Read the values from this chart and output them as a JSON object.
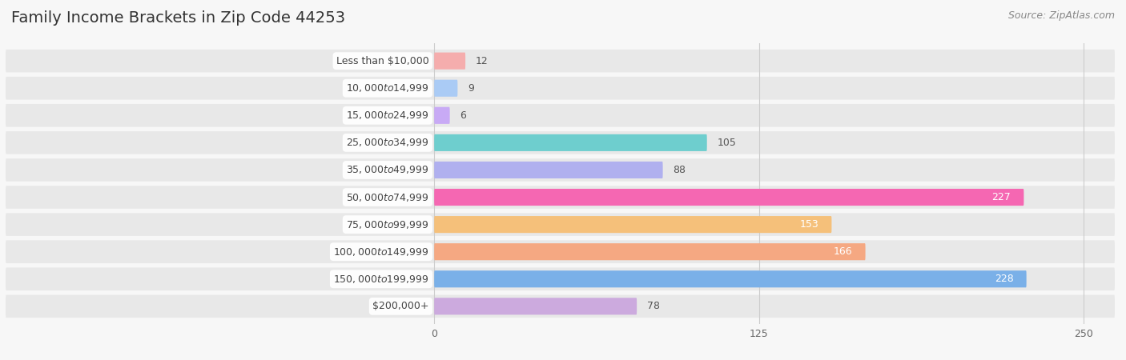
{
  "title": "Family Income Brackets in Zip Code 44253",
  "source": "Source: ZipAtlas.com",
  "categories": [
    "Less than $10,000",
    "$10,000 to $14,999",
    "$15,000 to $24,999",
    "$25,000 to $34,999",
    "$35,000 to $49,999",
    "$50,000 to $74,999",
    "$75,000 to $99,999",
    "$100,000 to $149,999",
    "$150,000 to $199,999",
    "$200,000+"
  ],
  "values": [
    12,
    9,
    6,
    105,
    88,
    227,
    153,
    166,
    228,
    78
  ],
  "bar_colors": [
    "#f5adad",
    "#aacbf5",
    "#c8aaf5",
    "#6ecece",
    "#b0b0ef",
    "#f567b2",
    "#f5c07a",
    "#f5a882",
    "#7ab0e8",
    "#ccaade"
  ],
  "label_colors": [
    "#555555",
    "#555555",
    "#555555",
    "#555555",
    "#555555",
    "#ffffff",
    "#ffffff",
    "#ffffff",
    "#ffffff",
    "#555555"
  ],
  "value_outside": [
    true,
    true,
    true,
    true,
    true,
    false,
    false,
    false,
    false,
    true
  ],
  "xlim_left": -165,
  "xlim_right": 262,
  "xticks": [
    0,
    125,
    250
  ],
  "background_color": "#f7f7f7",
  "row_bg_color": "#e8e8e8",
  "title_fontsize": 14,
  "source_fontsize": 9,
  "label_fontsize": 9,
  "value_fontsize": 9,
  "bar_height": 0.62
}
